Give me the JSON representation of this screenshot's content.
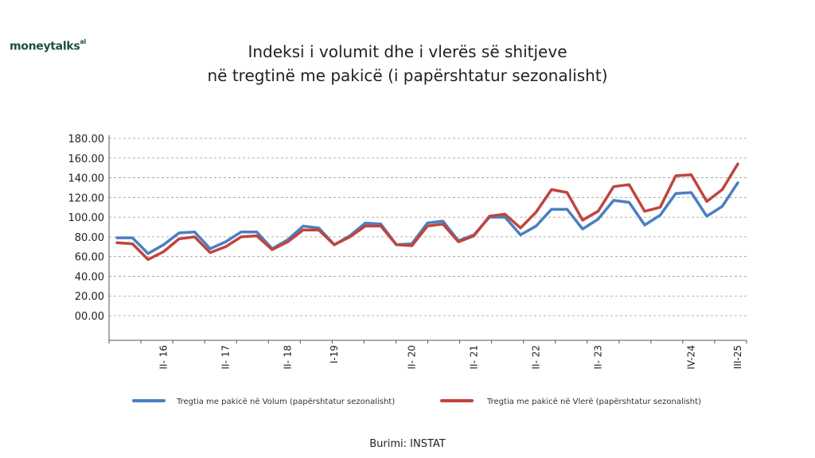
{
  "logo": {
    "text": "moneytalks",
    "suffix": "al"
  },
  "source": "Burimi: INSTAT",
  "chart_data": {
    "type": "line",
    "title": "Indeksi i volumit dhe i vlerës së shitjeve",
    "subtitle": "në tregtinë me pakicë (i papërshtatur sezonalisht)",
    "xlabel": "",
    "ylabel": "",
    "ylim": [
      0,
      180
    ],
    "y_ticks": [
      {
        "value": 0,
        "label": "00.00"
      },
      {
        "value": 20,
        "label": "20.00"
      },
      {
        "value": 40,
        "label": "40.00"
      },
      {
        "value": 60,
        "label": "60.00"
      },
      {
        "value": 80,
        "label": "80.00"
      },
      {
        "value": 100,
        "label": "100.00"
      },
      {
        "value": 120,
        "label": "120.00"
      },
      {
        "value": 140,
        "label": "140.00"
      },
      {
        "value": 160,
        "label": "160.00"
      },
      {
        "value": 180,
        "label": "180.00"
      }
    ],
    "x_tick_labels": [
      {
        "index": 3,
        "label": "II- 16"
      },
      {
        "index": 7,
        "label": "II- 17"
      },
      {
        "index": 11,
        "label": "II- 18"
      },
      {
        "index": 14,
        "label": "I-19"
      },
      {
        "index": 19,
        "label": "II- 20"
      },
      {
        "index": 23,
        "label": "II- 21"
      },
      {
        "index": 27,
        "label": "II- 22"
      },
      {
        "index": 31,
        "label": "II- 23"
      },
      {
        "index": 37,
        "label": "IV-24"
      },
      {
        "index": 40,
        "label": "III-25"
      }
    ],
    "grid": true,
    "legend": "bottom",
    "series": [
      {
        "name": "Tregtia me pakicë në Volum (papërshtatur sezonalisht)",
        "color": "#4a7fc1",
        "values": [
          79,
          79,
          63,
          72,
          84,
          85,
          68,
          75,
          85,
          85,
          68,
          77,
          91,
          89,
          72,
          81,
          94,
          93,
          72,
          73,
          94,
          96,
          76,
          82,
          100,
          100,
          82,
          91,
          108,
          108,
          88,
          98,
          117,
          115,
          92,
          102,
          124,
          125,
          101,
          111,
          135
        ]
      },
      {
        "name": "Tregtia me pakicë në Vlerë (papërshtatur sezonalisht)",
        "color": "#c0443e",
        "values": [
          74,
          73,
          57,
          65,
          78,
          80,
          64,
          70,
          80,
          81,
          67,
          75,
          87,
          87,
          72,
          80,
          91,
          91,
          72,
          71,
          91,
          93,
          75,
          81,
          101,
          103,
          89,
          105,
          128,
          125,
          97,
          106,
          131,
          133,
          106,
          110,
          142,
          143,
          116,
          128,
          154
        ]
      }
    ]
  }
}
